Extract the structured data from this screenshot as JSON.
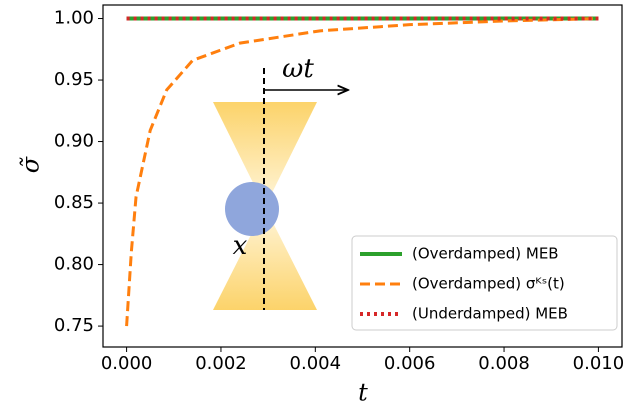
{
  "chart_data": {
    "type": "line",
    "xlabel": "t",
    "ylabel": "σ̃",
    "annotations": [
      "ωt",
      "x"
    ],
    "x": [
      0,
      0.0001,
      0.0002,
      0.0005,
      0.00085,
      0.0014,
      0.0024,
      0.0041,
      0.006,
      0.008,
      0.01
    ],
    "series": [
      {
        "name": "(Overdamped) MEB",
        "color": "#2ca02c",
        "style": "solid",
        "values": [
          1.0,
          1.0,
          1.0,
          1.0,
          1.0,
          1.0,
          1.0,
          1.0,
          1.0,
          1.0,
          1.0
        ]
      },
      {
        "name": "(Overdamped) σᴷˢ(t)",
        "color": "#ff7f0e",
        "style": "dashed",
        "values": [
          0.75,
          0.81,
          0.855,
          0.909,
          0.942,
          0.966,
          0.98,
          0.99,
          0.995,
          0.998,
          1.0
        ]
      },
      {
        "name": "(Underdamped) MEB",
        "color": "#d62728",
        "style": "dotted",
        "values": [
          1.0,
          1.0,
          1.0,
          1.0,
          1.0,
          1.0,
          1.0,
          1.0,
          1.0,
          1.0,
          1.0
        ]
      }
    ],
    "xlim": [
      -0.0005,
      0.0105
    ],
    "ylim": [
      0.733,
      1.011
    ],
    "xticks": [
      {
        "value": 0,
        "label": "0.000"
      },
      {
        "value": 0.002,
        "label": "0.002"
      },
      {
        "value": 0.004,
        "label": "0.004"
      },
      {
        "value": 0.006,
        "label": "0.006"
      },
      {
        "value": 0.008,
        "label": "0.008"
      },
      {
        "value": 0.01,
        "label": "0.010"
      }
    ],
    "yticks": [
      {
        "value": 0.75,
        "label": "0.75"
      },
      {
        "value": 0.8,
        "label": "0.80"
      },
      {
        "value": 0.85,
        "label": "0.85"
      },
      {
        "value": 0.9,
        "label": "0.90"
      },
      {
        "value": 0.95,
        "label": "0.95"
      },
      {
        "value": 1.0,
        "label": "1.00"
      }
    ],
    "legend": "lower right",
    "grid": false
  }
}
